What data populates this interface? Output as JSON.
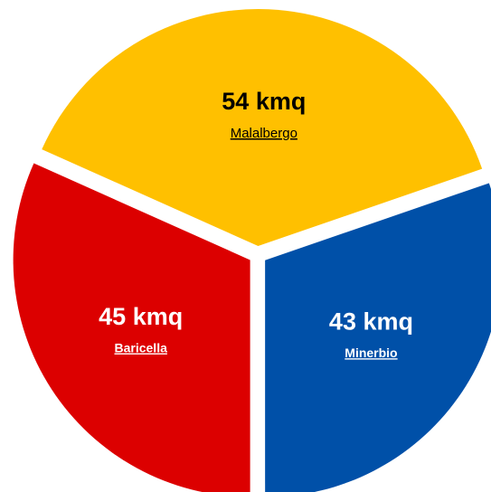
{
  "chart_data": {
    "type": "pie",
    "categories": [
      "Malalbergo",
      "Baricella",
      "Minerbio"
    ],
    "values": [
      54,
      45,
      43
    ],
    "value_labels": [
      "54 kmq",
      "45 kmq",
      "43 kmq"
    ],
    "colors": [
      "#ffc000",
      "#dc0000",
      "#0050a8"
    ],
    "label_colors": [
      "#000000",
      "#ffffff",
      "#ffffff"
    ]
  }
}
